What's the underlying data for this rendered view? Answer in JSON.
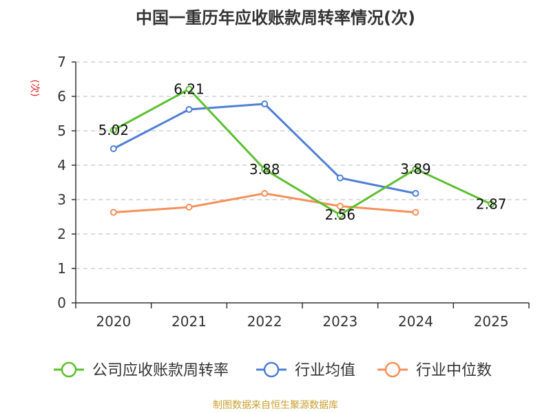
{
  "page_title": "中国一重历年应收账款周转率情况(次)",
  "source_note": "制图数据来自恒生聚源数据库",
  "chart_data": {
    "type": "line",
    "title": "中国一重历年应收账款周转率情况(次)",
    "ylabel": "(次)",
    "xlabel": "",
    "categories": [
      "2020",
      "2021",
      "2022",
      "2023",
      "2024",
      "2025"
    ],
    "ylim": [
      0,
      7
    ],
    "yticks": [
      0,
      1,
      2,
      3,
      4,
      5,
      6,
      7
    ],
    "grid": true,
    "legend_position": "bottom",
    "series": [
      {
        "name": "公司应收账款周转率",
        "color": "#5bbf2e",
        "values": [
          5.02,
          6.21,
          3.88,
          2.56,
          3.89,
          2.87
        ],
        "labels": [
          "5.02",
          "6.21",
          "3.88",
          "2.56",
          "3.89",
          "2.87"
        ]
      },
      {
        "name": "行业均值",
        "color": "#4f7fd6",
        "values": [
          4.48,
          5.62,
          5.78,
          3.63,
          3.18,
          null
        ]
      },
      {
        "name": "行业中位数",
        "color": "#f4905a",
        "values": [
          2.63,
          2.78,
          3.18,
          2.81,
          2.63,
          null
        ]
      }
    ]
  }
}
